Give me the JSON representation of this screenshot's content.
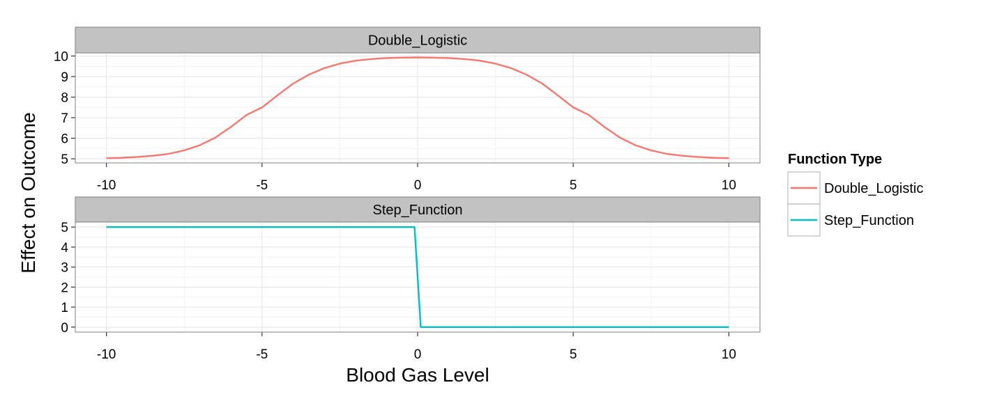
{
  "chart_data": {
    "type": "line",
    "title": "",
    "xlabel": "Blood Gas Level",
    "ylabel": "Effect on Outcome",
    "grid": true,
    "legend": {
      "title": "Function Type",
      "position": "right",
      "entries": [
        {
          "label": "Double_Logistic",
          "color": "#F8766D"
        },
        {
          "label": "Step_Function",
          "color": "#00BFC4"
        }
      ]
    },
    "x_ticks": [
      "-10",
      "-5",
      "0",
      "5",
      "10"
    ],
    "panels": [
      {
        "strip_label": "Double_Logistic",
        "color": "#F8766D",
        "xlim": [
          -11,
          11
        ],
        "ylim": [
          4.8,
          10.15
        ],
        "y_ticks": [
          "5",
          "6",
          "7",
          "8",
          "9",
          "10"
        ],
        "series": {
          "name": "Double_Logistic",
          "x": [
            -10,
            -9.5,
            -9,
            -8.5,
            -8,
            -7.5,
            -7,
            -6.5,
            -6,
            -5.5,
            -5,
            -4.5,
            -4,
            -3.5,
            -3,
            -2.5,
            -2,
            -1.5,
            -1,
            -0.5,
            0,
            0.5,
            1,
            1.5,
            2,
            2.5,
            3,
            3.5,
            4,
            4.5,
            5,
            5.5,
            6,
            6.5,
            7,
            7.5,
            8,
            8.5,
            9,
            9.5,
            10
          ],
          "y": [
            5.03,
            5.05,
            5.09,
            5.15,
            5.24,
            5.41,
            5.66,
            6.03,
            6.55,
            7.13,
            7.5,
            8.09,
            8.66,
            9.09,
            9.41,
            9.63,
            9.77,
            9.85,
            9.9,
            9.92,
            9.93,
            9.92,
            9.9,
            9.85,
            9.77,
            9.63,
            9.41,
            9.09,
            8.66,
            8.09,
            7.5,
            7.13,
            6.55,
            6.03,
            5.66,
            5.41,
            5.24,
            5.15,
            5.09,
            5.05,
            5.03
          ]
        }
      },
      {
        "strip_label": "Step_Function",
        "color": "#00BFC4",
        "xlim": [
          -11,
          11
        ],
        "ylim": [
          -0.25,
          5.25
        ],
        "y_ticks": [
          "0",
          "1",
          "2",
          "3",
          "4",
          "5"
        ],
        "series": {
          "name": "Step_Function",
          "x": [
            -10,
            -0.1,
            0.1,
            10
          ],
          "y": [
            5,
            5,
            0,
            0
          ]
        }
      }
    ]
  }
}
